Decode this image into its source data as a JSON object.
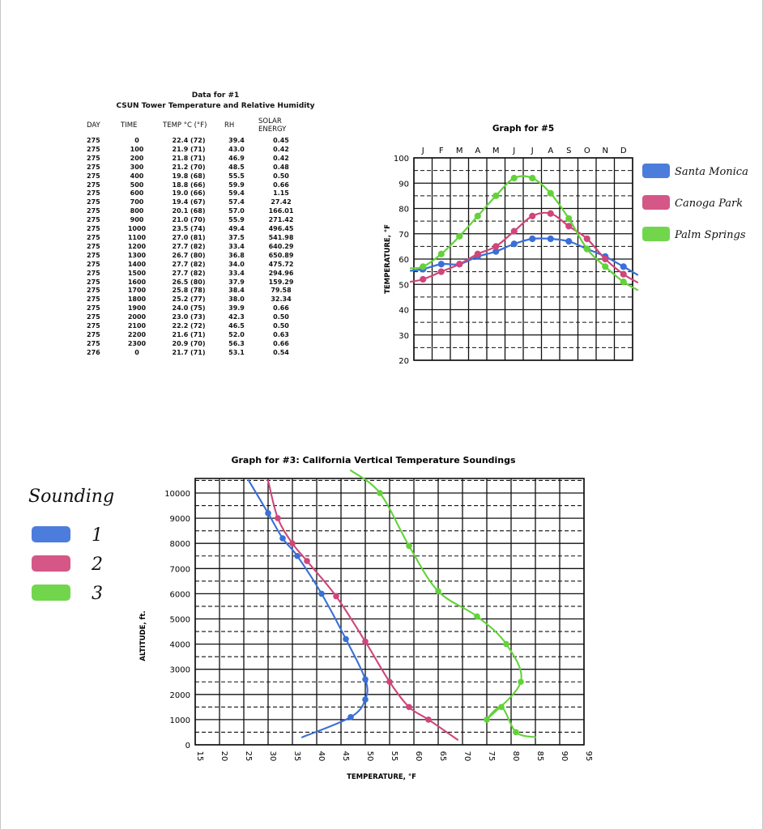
{
  "table": {
    "title_line1": "Data for #1",
    "title_line2": "CSUN Tower Temperature and Relative Humidity",
    "headers": [
      "DAY",
      "TIME",
      "TEMP °C (°F)",
      "RH",
      "SOLAR ENERGY"
    ],
    "rows": [
      [
        "275",
        "0",
        "22.4 (72)",
        "39.4",
        "0.45"
      ],
      [
        "275",
        "100",
        "21.9 (71)",
        "43.0",
        "0.42"
      ],
      [
        "275",
        "200",
        "21.8 (71)",
        "46.9",
        "0.42"
      ],
      [
        "275",
        "300",
        "21.2 (70)",
        "48.5",
        "0.48"
      ],
      [
        "275",
        "400",
        "19.8 (68)",
        "55.5",
        "0.50"
      ],
      [
        "275",
        "500",
        "18.8 (66)",
        "59.9",
        "0.66"
      ],
      [
        "275",
        "600",
        "19.0 (66)",
        "59.4",
        "1.15"
      ],
      [
        "275",
        "700",
        "19.4 (67)",
        "57.4",
        "27.42"
      ],
      [
        "275",
        "800",
        "20.1 (68)",
        "57.0",
        "166.01"
      ],
      [
        "275",
        "900",
        "21.0 (70)",
        "55.9",
        "271.42"
      ],
      [
        "275",
        "1000",
        "23.5 (74)",
        "49.4",
        "496.45"
      ],
      [
        "275",
        "1100",
        "27.0 (81)",
        "37.5",
        "541.98"
      ],
      [
        "275",
        "1200",
        "27.7 (82)",
        "33.4",
        "640.29"
      ],
      [
        "275",
        "1300",
        "26.7 (80)",
        "36.8",
        "650.89"
      ],
      [
        "275",
        "1400",
        "27.7 (82)",
        "34.0",
        "475.72"
      ],
      [
        "275",
        "1500",
        "27.7 (82)",
        "33.4",
        "294.96"
      ],
      [
        "275",
        "1600",
        "26.5 (80)",
        "37.9",
        "159.29"
      ],
      [
        "275",
        "1700",
        "25.8 (78)",
        "38.4",
        "79.58"
      ],
      [
        "275",
        "1800",
        "25.2 (77)",
        "38.0",
        "32.34"
      ],
      [
        "275",
        "1900",
        "24.0 (75)",
        "39.9",
        "0.66"
      ],
      [
        "275",
        "2000",
        "23.0 (73)",
        "42.3",
        "0.50"
      ],
      [
        "275",
        "2100",
        "22.2 (72)",
        "46.5",
        "0.50"
      ],
      [
        "275",
        "2200",
        "21.6 (71)",
        "52.0",
        "0.63"
      ],
      [
        "275",
        "2300",
        "20.9 (70)",
        "56.3",
        "0.66"
      ],
      [
        "276",
        "0",
        "21.7 (71)",
        "53.1",
        "0.54"
      ]
    ]
  },
  "chart_data": [
    {
      "type": "line",
      "title": "Graph for #5",
      "ylabel": "TEMPERATURE, °F",
      "xlabel": "",
      "ylim": [
        20,
        100
      ],
      "yticks": [
        "20",
        "30",
        "40",
        "50",
        "60",
        "70",
        "80",
        "90",
        "100"
      ],
      "categories": [
        "J",
        "F",
        "M",
        "A",
        "M",
        "J",
        "J",
        "A",
        "S",
        "O",
        "N",
        "D"
      ],
      "grid": true,
      "legend_position": "right",
      "series": [
        {
          "name": "Santa Monica",
          "color": "#3a6fd8",
          "values": [
            56,
            58,
            58,
            61,
            63,
            66,
            68,
            68,
            67,
            64,
            61,
            57
          ]
        },
        {
          "name": "Canoga Park",
          "color": "#d0457a",
          "values": [
            52,
            55,
            58,
            62,
            65,
            71,
            77,
            78,
            73,
            68,
            60,
            54
          ]
        },
        {
          "name": "Palm Springs",
          "color": "#63d23a",
          "values": [
            57,
            62,
            69,
            77,
            85,
            92,
            92,
            86,
            76,
            64,
            57,
            51
          ]
        }
      ]
    },
    {
      "type": "line",
      "title": "Graph for #3: California Vertical Temperature Soundings",
      "xlabel": "TEMPERATURE, °F",
      "ylabel": "ALTITUDE, ft.",
      "xlim": [
        15,
        95
      ],
      "ylim": [
        0,
        10000
      ],
      "xticks": [
        "15",
        "20",
        "25",
        "30",
        "35",
        "40",
        "45",
        "50",
        "55",
        "60",
        "65",
        "70",
        "75",
        "80",
        "85",
        "90",
        "95"
      ],
      "yticks": [
        "0",
        "1000",
        "2000",
        "3000",
        "4000",
        "5000",
        "6000",
        "7000",
        "8000",
        "9000",
        "10000"
      ],
      "grid": true,
      "legend_title": "Sounding",
      "legend_position": "left",
      "series": [
        {
          "name": "1",
          "color": "#3a6fd8",
          "x": [
            37,
            47,
            50,
            50,
            46,
            41,
            36,
            33,
            30,
            26
          ],
          "y": [
            300,
            1100,
            1800,
            2600,
            4200,
            6000,
            7500,
            8200,
            9200,
            10500
          ]
        },
        {
          "name": "2",
          "color": "#d0457a",
          "x": [
            69,
            63,
            59,
            55,
            50,
            44,
            38,
            35,
            32,
            30
          ],
          "y": [
            200,
            1000,
            1500,
            2500,
            4100,
            5900,
            7300,
            8000,
            9000,
            10500
          ]
        },
        {
          "name": "3",
          "color": "#63d23a",
          "x": [
            85,
            81,
            78,
            75,
            82,
            79,
            73,
            65,
            59,
            53,
            47
          ],
          "y": [
            300,
            500,
            1500,
            1000,
            2500,
            4000,
            5100,
            6100,
            7900,
            10000,
            10900
          ]
        }
      ]
    }
  ],
  "legend5": {
    "labels": [
      "Santa Monica",
      "Canoga Park",
      "Palm Springs"
    ]
  },
  "legend3": {
    "title": "Sounding",
    "labels": [
      "1",
      "2",
      "3"
    ]
  }
}
